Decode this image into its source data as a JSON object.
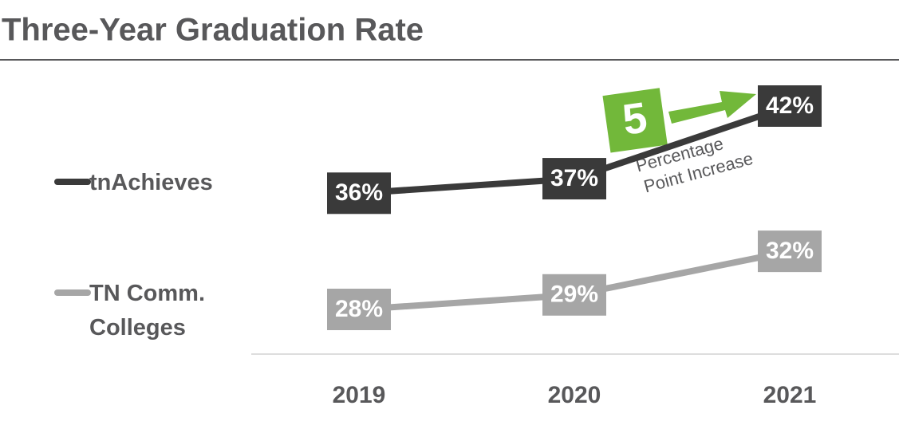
{
  "chart_data": {
    "type": "line",
    "title": "Three-Year Graduation Rate",
    "categories": [
      "2019",
      "2020",
      "2021"
    ],
    "series": [
      {
        "name": "tnAchieves",
        "color": "#3a3a3a",
        "values": [
          36,
          37,
          42
        ],
        "value_labels": [
          "36%",
          "37%",
          "42%"
        ]
      },
      {
        "name": "TN Comm. Colleges",
        "color": "#a6a6a6",
        "values": [
          28,
          29,
          32
        ],
        "value_labels": [
          "28%",
          "29%",
          "32%"
        ]
      }
    ],
    "annotation": {
      "number": 5,
      "lines": [
        "Percentage",
        "Point Increase"
      ],
      "color": "#72b83a"
    }
  }
}
